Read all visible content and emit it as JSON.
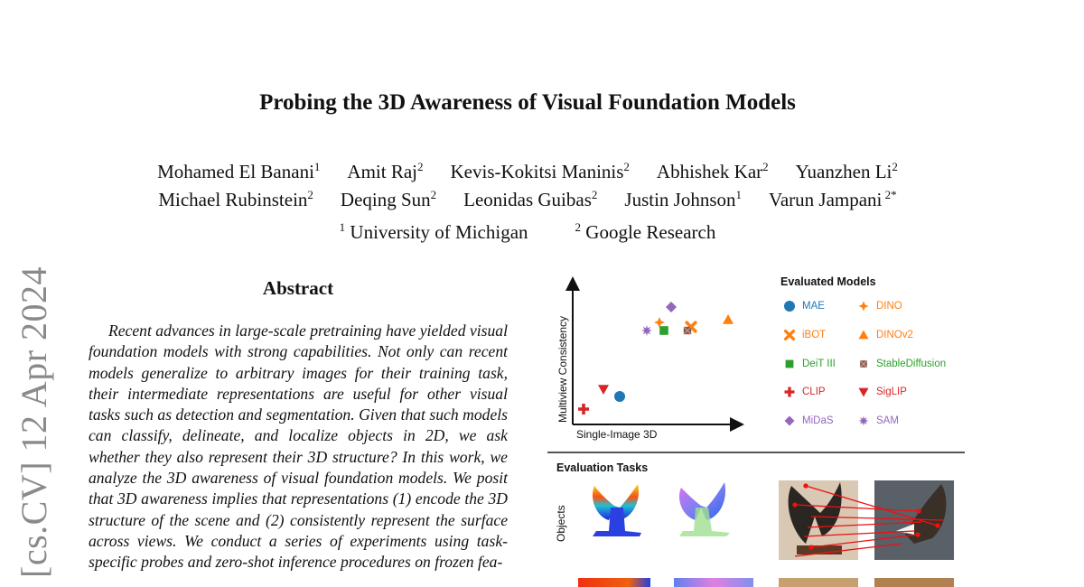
{
  "paper": {
    "title": "Probing the 3D Awareness of Visual Foundation Models",
    "authors_line1": [
      {
        "name": "Mohamed El Banani",
        "aff": "1"
      },
      {
        "name": "Amit Raj",
        "aff": "2"
      },
      {
        "name": "Kevis-Kokitsi Maninis",
        "aff": "2"
      },
      {
        "name": "Abhishek Kar",
        "aff": "2"
      },
      {
        "name": "Yuanzhen Li",
        "aff": "2"
      }
    ],
    "authors_line2": [
      {
        "name": "Michael Rubinstein",
        "aff": "2"
      },
      {
        "name": "Deqing Sun",
        "aff": "2"
      },
      {
        "name": "Leonidas Guibas",
        "aff": "2"
      },
      {
        "name": "Justin Johnson",
        "aff": "1"
      },
      {
        "name": "Varun Jampani",
        "aff": "2*"
      }
    ],
    "affiliations": [
      {
        "num": "1",
        "name": "University of Michigan"
      },
      {
        "num": "2",
        "name": "Google Research"
      }
    ],
    "arxiv_stamp": "[cs.CV]  12 Apr 2024",
    "abstract_heading": "Abstract",
    "abstract_text": "Recent advances in large-scale pretraining have yielded visual foundation models with strong capabilities. Not only can recent models generalize to arbitrary images for their training task, their intermediate representations are useful for other visual tasks such as detection and segmentation. Given that such models can classify, delineate, and localize objects in 2D, we ask whether they also represent their 3D structure? In this work, we analyze the 3D awareness of visual foundation models. We posit that 3D awareness implies that representations (1) encode the 3D structure of the scene and (2) consistently represent the surface across views. We conduct a series of experiments using task-specific probes and zero-shot inference procedures on frozen fea-"
  },
  "figure": {
    "legend_title": "Evaluated Models",
    "x_axis_label": "Single-Image 3D",
    "y_axis_label": "Multiview Consistency",
    "models": [
      {
        "name": "MAE",
        "marker": "circle",
        "color": "#1f77b4"
      },
      {
        "name": "DINO",
        "marker": "star4",
        "color": "#ff7f0e"
      },
      {
        "name": "iBOT",
        "marker": "x",
        "color": "#ff7f0e"
      },
      {
        "name": "DINOv2",
        "marker": "triangle-up",
        "color": "#ff7f0e"
      },
      {
        "name": "DeiT III",
        "marker": "square",
        "color": "#2ca02c"
      },
      {
        "name": "StableDiffusion",
        "marker": "x-square",
        "color": "#8c564b",
        "label_color": "#2ca02c"
      },
      {
        "name": "CLIP",
        "marker": "plus",
        "color": "#d62728"
      },
      {
        "name": "SigLIP",
        "marker": "triangle-down",
        "color": "#d62728"
      },
      {
        "name": "MiDaS",
        "marker": "diamond",
        "color": "#9467bd"
      },
      {
        "name": "SAM",
        "marker": "star8",
        "color": "#9467bd"
      }
    ],
    "tasks_title": "Evaluation Tasks",
    "row_label_objects": "Objects"
  }
}
